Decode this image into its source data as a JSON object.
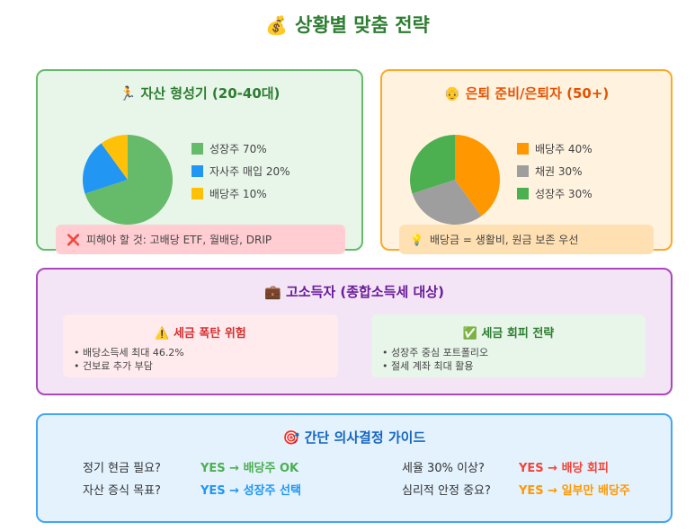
{
  "title": {
    "icon": "money-bag",
    "emoji": "💰",
    "text": "상황별 맞춤 전략"
  },
  "young": {
    "icon": "runner",
    "emoji": "🏃",
    "title": "자산 형성기 (20-40대)",
    "chart_data": {
      "type": "pie",
      "slices": [
        {
          "label": "성장주 70%",
          "value": 70,
          "color": "#66bb6a"
        },
        {
          "label": "자사주 매입 20%",
          "value": 20,
          "color": "#2196f3"
        },
        {
          "label": "배당주 10%",
          "value": 10,
          "color": "#ffc107"
        }
      ]
    },
    "note": {
      "icon": "cross-mark",
      "emoji": "❌",
      "text": "피해야 할 것: 고배당 ETF, 월배당, DRIP"
    }
  },
  "retire": {
    "icon": "older-person",
    "emoji": "👴",
    "title": "은퇴 준비/은퇴자 (50+)",
    "chart_data": {
      "type": "pie",
      "slices": [
        {
          "label": "배당주 40%",
          "value": 40,
          "color": "#ff9800"
        },
        {
          "label": "채권 30%",
          "value": 30,
          "color": "#9e9e9e"
        },
        {
          "label": "성장주 30%",
          "value": 30,
          "color": "#4caf50"
        }
      ]
    },
    "note": {
      "icon": "lightbulb",
      "emoji": "💡",
      "text": "배당금 = 생활비, 원금 보존 우선"
    }
  },
  "high_income": {
    "icon": "briefcase",
    "emoji": "💼",
    "title": "고소득자 (종합소득세 대상)",
    "risk": {
      "icon": "warning",
      "emoji": "⚠️",
      "title": "세금 폭탄 위험",
      "items": [
        "• 배당소득세 최대 46.2%",
        "• 건보료 추가 부담"
      ]
    },
    "avoid": {
      "icon": "check-box",
      "emoji": "✅",
      "title": "세금 회피 전략",
      "items": [
        "• 성장주 중심 포트폴리오",
        "• 절세 계좌 최대 활용"
      ]
    }
  },
  "guide": {
    "icon": "target",
    "emoji": "🎯",
    "title": "간단 의사결정 가이드",
    "rows": [
      {
        "q": "정기 현금 필요?",
        "a": "YES → 배당주 OK",
        "color": "#4caf50"
      },
      {
        "q": "자산 증식 목표?",
        "a": "YES → 성장주 선택",
        "color": "#2196f3"
      },
      {
        "q": "세율 30% 이상?",
        "a": "YES → 배당 회피",
        "color": "#f44336"
      },
      {
        "q": "심리적 안정 중요?",
        "a": "YES → 일부만 배당주",
        "color": "#ff9800"
      }
    ]
  }
}
